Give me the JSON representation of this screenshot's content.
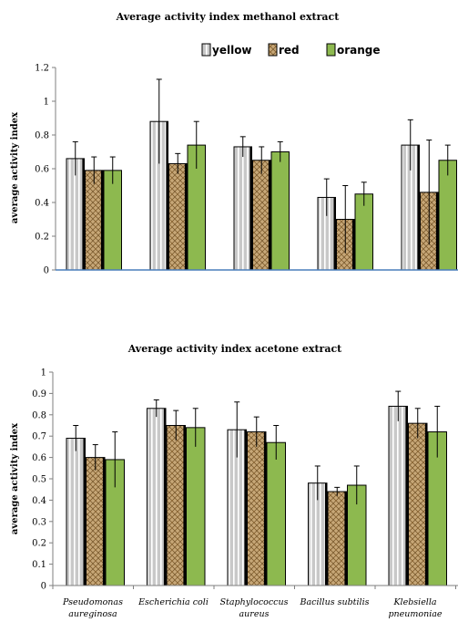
{
  "colors": {
    "yellow_fill": "#c8c8c8",
    "yellow_stripe": "#ffffff",
    "red_fill": "#c7a777",
    "red_pattern": "#7a5a2e",
    "orange_fill": "#8db94f",
    "axis": "#4a7ebb"
  },
  "chart_data": [
    {
      "type": "bar",
      "title": "Average activity index methanol extract",
      "xlabel": "",
      "ylabel": "average activity index",
      "ylim": [
        0,
        1.2
      ],
      "yticks": [
        "0",
        "0.2",
        "0.4",
        "0.6",
        "0.8",
        "1",
        "1.2"
      ],
      "legend": {
        "position": "top",
        "entries": [
          "yellow",
          "red",
          "orange"
        ]
      },
      "categories": [
        "Pseudomonas aureginosa",
        "Escherichia coli",
        "Staphylococcus aureus",
        "Bacillus subtilis",
        "Klebsiella pneumoniae"
      ],
      "series": [
        {
          "name": "yellow",
          "values": [
            0.66,
            0.88,
            0.73,
            0.43,
            0.74
          ],
          "errors": [
            0.1,
            0.25,
            0.06,
            0.11,
            0.15
          ]
        },
        {
          "name": "red",
          "values": [
            0.59,
            0.63,
            0.65,
            0.3,
            0.46
          ],
          "errors": [
            0.08,
            0.06,
            0.08,
            0.2,
            0.31
          ]
        },
        {
          "name": "orange",
          "values": [
            0.59,
            0.74,
            0.7,
            0.45,
            0.65
          ],
          "errors": [
            0.08,
            0.14,
            0.06,
            0.07,
            0.09
          ]
        }
      ]
    },
    {
      "type": "bar",
      "title": "Average activity index acetone extract",
      "xlabel": "",
      "ylabel": "average activity index",
      "ylim": [
        0,
        1
      ],
      "yticks": [
        "0",
        "0.1",
        "0.2",
        "0.3",
        "0.4",
        "0.5",
        "0.6",
        "0.7",
        "0.8",
        "0.9",
        "1"
      ],
      "categories": [
        {
          "line1": "Pseudomonas",
          "line2": "aureginosa"
        },
        {
          "line1": "Escherichia coli",
          "line2": ""
        },
        {
          "line1": "Staphylococcus",
          "line2": "aureus"
        },
        {
          "line1": "Bacillus subtilis",
          "line2": ""
        },
        {
          "line1": "Klebsiella",
          "line2": "pneumoniae"
        }
      ],
      "series": [
        {
          "name": "yellow",
          "values": [
            0.69,
            0.83,
            0.73,
            0.48,
            0.84
          ],
          "errors": [
            0.06,
            0.04,
            0.13,
            0.08,
            0.07
          ]
        },
        {
          "name": "red",
          "values": [
            0.6,
            0.75,
            0.72,
            0.44,
            0.76
          ],
          "errors": [
            0.06,
            0.07,
            0.07,
            0.02,
            0.07
          ]
        },
        {
          "name": "orange",
          "values": [
            0.59,
            0.74,
            0.67,
            0.47,
            0.72
          ],
          "errors": [
            0.13,
            0.09,
            0.08,
            0.09,
            0.12
          ]
        }
      ]
    }
  ]
}
